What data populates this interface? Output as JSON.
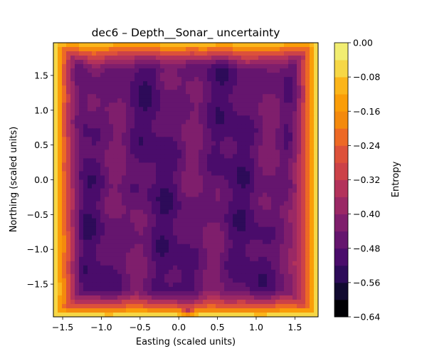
{
  "chart_data": {
    "type": "heatmap",
    "subtype": "filled-contour",
    "title": "dec6 – Depth__Sonar_ uncertainty",
    "xlabel": "Easting (scaled units)",
    "ylabel": "Northing (scaled units)",
    "xlim": [
      -1.62,
      1.8
    ],
    "ylim": [
      -1.97,
      1.97
    ],
    "xticks": [
      -1.5,
      -1.0,
      -0.5,
      0.0,
      0.5,
      1.0,
      1.5
    ],
    "xtick_labels": [
      "−1.5",
      "−1.0",
      "−0.5",
      "0.0",
      "0.5",
      "1.0",
      "1.5"
    ],
    "yticks": [
      -1.5,
      -1.0,
      -0.5,
      0.0,
      0.5,
      1.0,
      1.5
    ],
    "ytick_labels": [
      "−1.5",
      "−1.0",
      "−0.5",
      "0.0",
      "0.5",
      "1.0",
      "1.5"
    ],
    "colorbar": {
      "label": "Entropy",
      "colormap": "inferno",
      "range": [
        -0.64,
        0.0
      ],
      "ticks": [
        -0.64,
        -0.56,
        -0.48,
        -0.4,
        -0.32,
        -0.24,
        -0.16,
        -0.08,
        0.0
      ],
      "tick_labels": [
        "−0.64",
        "−0.56",
        "−0.48",
        "−0.40",
        "−0.32",
        "−0.24",
        "−0.16",
        "−0.08",
        "0.00"
      ],
      "levels": [
        -0.64,
        -0.6,
        -0.56,
        -0.52,
        -0.48,
        -0.44,
        -0.4,
        -0.36,
        -0.32,
        -0.28,
        -0.24,
        -0.2,
        -0.16,
        -0.12,
        -0.08,
        -0.04,
        0.0
      ],
      "level_colors": [
        "#000004",
        "#110a30",
        "#2d0b59",
        "#4a0c6b",
        "#65156e",
        "#7f1e6c",
        "#9a2865",
        "#b3325b",
        "#cc4248",
        "#dd513a",
        "#ed6925",
        "#f48a0d",
        "#fa9d08",
        "#fbb51a",
        "#f6d746",
        "#f1ed71"
      ]
    },
    "field": {
      "interior_range": [
        -0.52,
        -0.4
      ],
      "edge_value": 0.0,
      "description_values": [
        {
          "region": "interior",
          "entropy": -0.46
        },
        {
          "region": "left/right/bottom edges",
          "entropy": 0.0
        },
        {
          "region": "local minimum near (0.12, -1.9)",
          "entropy": -0.62
        }
      ]
    }
  }
}
